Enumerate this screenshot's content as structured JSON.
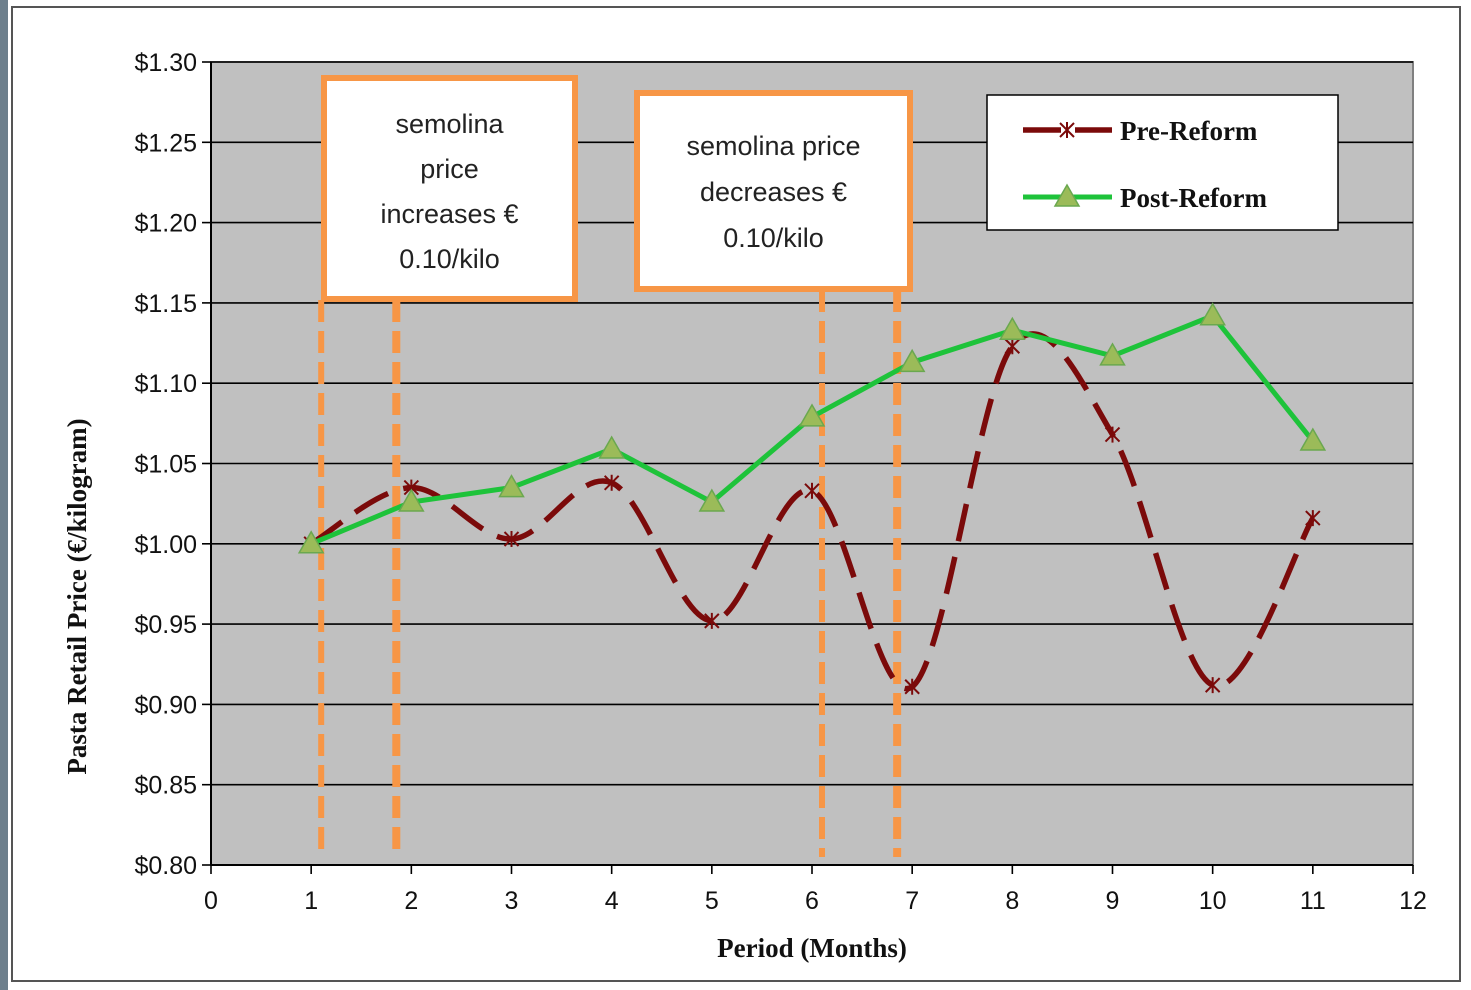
{
  "chart_data": {
    "type": "line",
    "title": "",
    "xlabel": "Period (Months)",
    "ylabel": "Pasta Retail Price (€/kilogram)",
    "xlim": [
      0,
      12
    ],
    "ylim": [
      0.8,
      1.3
    ],
    "x_ticks": [
      "0",
      "1",
      "2",
      "3",
      "4",
      "5",
      "6",
      "7",
      "8",
      "9",
      "10",
      "11",
      "12"
    ],
    "y_ticks": [
      "$0.80",
      "$0.85",
      "$0.90",
      "$0.95",
      "$1.00",
      "$1.05",
      "$1.10",
      "$1.15",
      "$1.20",
      "$1.25",
      "$1.30"
    ],
    "grid": true,
    "plot_background": "#c0c0c0",
    "legend_position": "top-right",
    "series": [
      {
        "name": "Pre-Reform",
        "color": "#7b0a0a",
        "marker": "asterisk",
        "line_style": "dashed",
        "x": [
          1,
          2,
          3,
          4,
          5,
          6,
          7,
          8,
          9,
          10,
          11
        ],
        "y": [
          1.0,
          1.035,
          1.003,
          1.038,
          0.952,
          1.033,
          0.911,
          1.123,
          1.068,
          0.912,
          1.016
        ]
      },
      {
        "name": "Post-Reform",
        "color": "#1ec33a",
        "marker": "triangle",
        "marker_fill": "#9bbb59",
        "line_style": "solid",
        "x": [
          1,
          2,
          3,
          4,
          5,
          6,
          7,
          8,
          9,
          10,
          11
        ],
        "y": [
          1.0,
          1.026,
          1.035,
          1.059,
          1.026,
          1.079,
          1.113,
          1.133,
          1.117,
          1.142,
          1.064
        ]
      }
    ],
    "annotations": [
      {
        "lines": [
          "semolina",
          "price",
          "increases  €",
          "0.10/kilo"
        ],
        "border_color": "#f79646",
        "x_markers": [
          1.1,
          1.85
        ]
      },
      {
        "lines": [
          "semolina price",
          "decreases  €",
          "0.10/kilo"
        ],
        "border_color": "#f79646",
        "x_markers": [
          6.1,
          6.85
        ]
      }
    ]
  }
}
